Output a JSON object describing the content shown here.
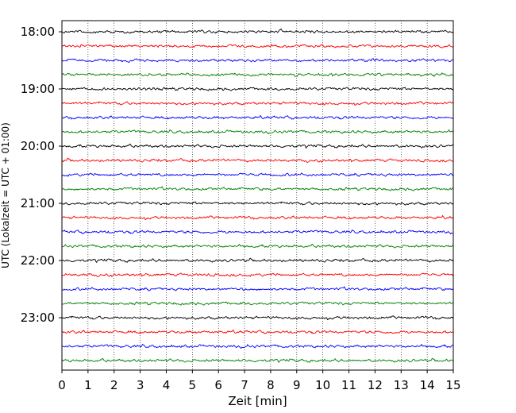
{
  "chart_data": {
    "type": "line",
    "title": "",
    "xlabel": "Zeit  [min]",
    "ylabel": "UTC (Lokalzeit = UTC + 01:00)",
    "xlim": [
      0,
      15
    ],
    "x_ticks": [
      0,
      1,
      2,
      3,
      4,
      5,
      6,
      7,
      8,
      9,
      10,
      11,
      12,
      13,
      14,
      15
    ],
    "x_tick_labels": [
      "0",
      "1",
      "2",
      "3",
      "4",
      "5",
      "6",
      "7",
      "8",
      "9",
      "10",
      "11",
      "12",
      "13",
      "14",
      "15"
    ],
    "y_ticks": [
      "18:00",
      "19:00",
      "20:00",
      "21:00",
      "22:00",
      "23:00"
    ],
    "grid": "vertical dotted",
    "trace_colors": [
      "#000000",
      "#ff0000",
      "#0000ff",
      "#008000"
    ],
    "traces": [
      "18:00",
      "18:15",
      "18:30",
      "18:45",
      "19:00",
      "19:15",
      "19:30",
      "19:45",
      "20:00",
      "20:15",
      "20:30",
      "20:45",
      "21:00",
      "21:15",
      "21:30",
      "21:45",
      "22:00",
      "22:15",
      "22:30",
      "22:45",
      "23:00",
      "23:15",
      "23:30",
      "23:45"
    ]
  }
}
